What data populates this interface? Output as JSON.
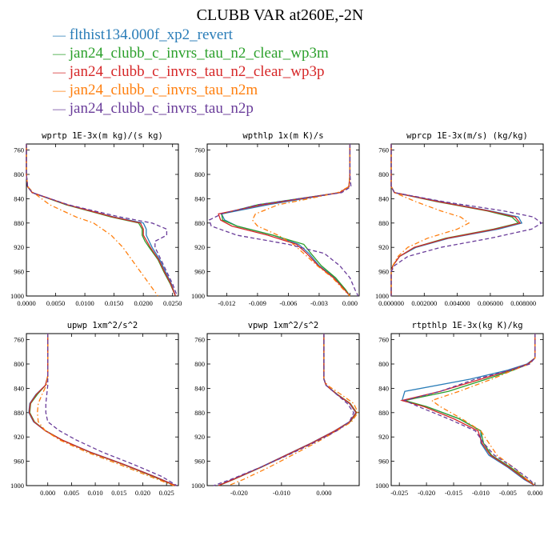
{
  "title": "CLUBB VAR at260E,-2N",
  "legend": [
    {
      "label": "flthist134.000f_xp2_revert",
      "color": "#2a7db8",
      "dash": "solid"
    },
    {
      "label": "jan24_clubb_c_invrs_tau_n2_clear_wp3m",
      "color": "#2ca02c",
      "dash": "solid"
    },
    {
      "label": "jan24_clubb_c_invrs_tau_n2_clear_wp3p",
      "color": "#d62728",
      "dash": "solid"
    },
    {
      "label": "jan24_clubb_c_invrs_tau_n2m",
      "color": "#ff7f0e",
      "dash": "dashdot"
    },
    {
      "label": "jan24_clubb_c_invrs_tau_n2p",
      "color": "#6a3d9a",
      "dash": "dash"
    }
  ],
  "chart_data": [
    {
      "type": "line",
      "title": "wprtp  1E-3x(m kg)/(s kg)",
      "xlim": [
        0,
        0.026
      ],
      "ylim": [
        1000,
        750
      ],
      "xticks": [
        0,
        0.005,
        0.01,
        0.015,
        0.02,
        0.025
      ],
      "xtick_labels": [
        "0.0000",
        "0.0050",
        "0.0100",
        "0.0150",
        "0.0200",
        "0.0250"
      ],
      "yticks": [
        760,
        800,
        840,
        880,
        920,
        960,
        1000
      ],
      "ytick_labels": [
        "760",
        "800",
        "840",
        "880",
        "920",
        "960",
        "1000"
      ],
      "y": [
        750,
        800,
        820,
        830,
        850,
        870,
        880,
        890,
        900,
        910,
        920,
        940,
        960,
        980,
        1000
      ],
      "series": [
        {
          "values": [
            0.0,
            0.0,
            0.0002,
            0.001,
            0.007,
            0.015,
            0.02,
            0.0205,
            0.0205,
            0.021,
            0.0215,
            0.0228,
            0.0238,
            0.0248,
            0.0255
          ]
        },
        {
          "values": [
            0.0,
            0.0,
            0.0002,
            0.001,
            0.0068,
            0.0145,
            0.0192,
            0.0198,
            0.0198,
            0.0203,
            0.021,
            0.0225,
            0.0235,
            0.0246,
            0.0255
          ]
        },
        {
          "values": [
            0.0,
            0.0,
            0.0002,
            0.001,
            0.007,
            0.0148,
            0.0195,
            0.02,
            0.02,
            0.0206,
            0.0212,
            0.0226,
            0.0236,
            0.0247,
            0.0255
          ]
        },
        {
          "values": [
            0.0,
            0.0,
            0.0002,
            0.0012,
            0.004,
            0.0085,
            0.0115,
            0.013,
            0.0145,
            0.0155,
            0.0165,
            0.018,
            0.0195,
            0.021,
            0.0225
          ]
        },
        {
          "values": [
            0.0,
            0.0,
            0.0002,
            0.001,
            0.0072,
            0.016,
            0.0215,
            0.024,
            0.024,
            0.022,
            0.022,
            0.023,
            0.024,
            0.025,
            0.0258
          ]
        }
      ]
    },
    {
      "type": "line",
      "title": "wpthlp  1x(m K)/s",
      "xlim": [
        -0.0139,
        0.0009
      ],
      "ylim": [
        1000,
        750
      ],
      "xticks": [
        -0.012,
        -0.009,
        -0.006,
        -0.003,
        0
      ],
      "xtick_labels": [
        "-0.012",
        "-0.009",
        "-0.006",
        "-0.003",
        "0.000"
      ],
      "yticks": [
        760,
        800,
        840,
        880,
        920,
        960,
        1000
      ],
      "ytick_labels": [
        "760",
        "800",
        "840",
        "880",
        "920",
        "960",
        "1000"
      ],
      "y": [
        750,
        800,
        820,
        830,
        840,
        850,
        865,
        875,
        885,
        900,
        915,
        930,
        950,
        970,
        990,
        1000
      ],
      "series": [
        {
          "values": [
            0,
            0,
            -0.0001,
            -0.001,
            -0.0045,
            -0.008,
            -0.0125,
            -0.0122,
            -0.011,
            -0.0075,
            -0.005,
            -0.004,
            -0.003,
            -0.0015,
            -0.0005,
            0
          ]
        },
        {
          "values": [
            0,
            0,
            -0.0001,
            -0.001,
            -0.005,
            -0.009,
            -0.0125,
            -0.0124,
            -0.011,
            -0.0075,
            -0.0045,
            -0.0038,
            -0.0028,
            -0.0014,
            -0.0004,
            0
          ]
        },
        {
          "values": [
            0,
            0,
            -0.0001,
            -0.001,
            -0.0048,
            -0.0085,
            -0.0128,
            -0.0126,
            -0.0115,
            -0.008,
            -0.0052,
            -0.0042,
            -0.0031,
            -0.0016,
            -0.0005,
            0
          ]
        },
        {
          "values": [
            0,
            0,
            -0.0001,
            -0.0012,
            -0.004,
            -0.007,
            -0.0092,
            -0.0095,
            -0.009,
            -0.007,
            -0.0055,
            -0.0045,
            -0.0032,
            -0.0017,
            -0.0006,
            0
          ]
        },
        {
          "values": [
            0,
            0,
            0.0001,
            -0.0008,
            -0.005,
            -0.009,
            -0.0125,
            -0.0137,
            -0.0135,
            -0.011,
            -0.006,
            -0.0025,
            -0.001,
            0.0,
            0.0005,
            0.0008
          ]
        }
      ]
    },
    {
      "type": "line",
      "title": "wprcp  1E-3x(m/s) (kg/kg)",
      "xlim": [
        0,
        0.0092
      ],
      "ylim": [
        1000,
        750
      ],
      "xticks": [
        0,
        0.002,
        0.004,
        0.006,
        0.008
      ],
      "xtick_labels": [
        "0.000000",
        "0.002000",
        "0.004000",
        "0.006000",
        "0.008000"
      ],
      "yticks": [
        760,
        800,
        840,
        880,
        920,
        960,
        1000
      ],
      "ytick_labels": [
        "760",
        "800",
        "840",
        "880",
        "920",
        "960",
        "1000"
      ],
      "y": [
        750,
        820,
        830,
        845,
        860,
        870,
        880,
        890,
        905,
        920,
        935,
        950,
        960,
        1000
      ],
      "series": [
        {
          "values": [
            0,
            0,
            0.0002,
            0.003,
            0.006,
            0.0077,
            0.0079,
            0.0065,
            0.0035,
            0.0015,
            0.0005,
            0.0001,
            0,
            0
          ]
        },
        {
          "values": [
            0,
            0,
            0.0002,
            0.0028,
            0.0058,
            0.0073,
            0.0077,
            0.0062,
            0.0033,
            0.0014,
            0.0005,
            0.0001,
            0,
            0
          ]
        },
        {
          "values": [
            0,
            0,
            0.0002,
            0.0029,
            0.0059,
            0.0075,
            0.0078,
            0.0063,
            0.0034,
            0.0014,
            0.0005,
            0.0001,
            0,
            0
          ]
        },
        {
          "values": [
            0,
            0,
            0.0002,
            0.0015,
            0.003,
            0.0042,
            0.0047,
            0.004,
            0.0022,
            0.001,
            0.0004,
            0.0001,
            0,
            0
          ]
        },
        {
          "values": [
            0,
            0,
            0.0002,
            0.0032,
            0.0068,
            0.0086,
            0.0091,
            0.0085,
            0.006,
            0.003,
            0.001,
            0.0002,
            0,
            0
          ]
        }
      ]
    },
    {
      "type": "line",
      "title": "upwp  1xm^2/s^2",
      "xlim": [
        -0.0045,
        0.0275
      ],
      "ylim": [
        1000,
        750
      ],
      "xticks": [
        0,
        0.005,
        0.01,
        0.015,
        0.02,
        0.025
      ],
      "xtick_labels": [
        "0.000",
        "0.005",
        "0.010",
        "0.015",
        "0.020",
        "0.025"
      ],
      "yticks": [
        760,
        800,
        840,
        880,
        920,
        960,
        1000
      ],
      "ytick_labels": [
        "760",
        "800",
        "840",
        "880",
        "920",
        "960",
        "1000"
      ],
      "y": [
        750,
        820,
        835,
        850,
        865,
        880,
        895,
        910,
        925,
        945,
        965,
        985,
        1000
      ],
      "series": [
        {
          "values": [
            0,
            0,
            -0.0005,
            -0.0025,
            -0.0038,
            -0.004,
            -0.003,
            -0.0005,
            0.003,
            0.009,
            0.016,
            0.0225,
            0.027
          ]
        },
        {
          "values": [
            0,
            0,
            -0.0005,
            -0.0022,
            -0.0036,
            -0.0038,
            -0.0028,
            -0.0004,
            0.003,
            0.0088,
            0.0158,
            0.0222,
            0.0268
          ]
        },
        {
          "values": [
            0,
            0,
            -0.0005,
            -0.0024,
            -0.0037,
            -0.0039,
            -0.0029,
            -0.0005,
            0.003,
            0.0089,
            0.0159,
            0.0224,
            0.0269
          ]
        },
        {
          "values": [
            0,
            0,
            -0.0003,
            -0.0012,
            -0.002,
            -0.0022,
            -0.002,
            -0.0005,
            0.0025,
            0.0082,
            0.015,
            0.0215,
            0.0265
          ]
        },
        {
          "values": [
            0,
            0,
            0,
            -0.0002,
            -0.0004,
            -0.0004,
            0,
            0.0025,
            0.006,
            0.0115,
            0.018,
            0.024,
            0.0272
          ]
        }
      ]
    },
    {
      "type": "line",
      "title": "vpwp  1xm^2/s^2",
      "xlim": [
        -0.0275,
        0.0083
      ],
      "ylim": [
        1000,
        750
      ],
      "xticks": [
        -0.02,
        -0.01,
        0
      ],
      "xtick_labels": [
        "-0.020",
        "-0.010",
        "0.000"
      ],
      "yticks": [
        760,
        800,
        840,
        880,
        920,
        960,
        1000
      ],
      "ytick_labels": [
        "760",
        "800",
        "840",
        "880",
        "920",
        "960",
        "1000"
      ],
      "y": [
        750,
        825,
        835,
        850,
        865,
        880,
        895,
        910,
        930,
        950,
        970,
        990,
        1000
      ],
      "series": [
        {
          "values": [
            0,
            0,
            0.0005,
            0.003,
            0.006,
            0.0075,
            0.006,
            0.0025,
            -0.003,
            -0.009,
            -0.015,
            -0.0215,
            -0.025
          ]
        },
        {
          "values": [
            0,
            0,
            0.0005,
            0.0032,
            0.0062,
            0.0077,
            0.0062,
            0.0027,
            -0.0028,
            -0.0088,
            -0.0148,
            -0.0213,
            -0.0248
          ]
        },
        {
          "values": [
            0,
            0,
            0.0005,
            0.0031,
            0.0061,
            0.0076,
            0.0061,
            0.0026,
            -0.0029,
            -0.0089,
            -0.0149,
            -0.0214,
            -0.0249
          ]
        },
        {
          "values": [
            0,
            0,
            0.0008,
            0.004,
            0.007,
            0.008,
            0.0065,
            0.003,
            -0.002,
            -0.0075,
            -0.013,
            -0.019,
            -0.0225
          ]
        },
        {
          "values": [
            0,
            0,
            0.0005,
            0.003,
            0.0055,
            0.007,
            0.006,
            0.003,
            -0.0025,
            -0.0085,
            -0.015,
            -0.022,
            -0.026
          ]
        }
      ]
    },
    {
      "type": "line",
      "title": "rtpthlp  1E-3x(kg K)/kg",
      "xlim": [
        -0.0265,
        0.0015
      ],
      "ylim": [
        1000,
        750
      ],
      "xticks": [
        -0.025,
        -0.02,
        -0.015,
        -0.01,
        -0.005,
        0
      ],
      "xtick_labels": [
        "-0.025",
        "-0.020",
        "-0.015",
        "-0.010",
        "-0.005",
        "0.000"
      ],
      "yticks": [
        760,
        800,
        840,
        880,
        920,
        960,
        1000
      ],
      "ytick_labels": [
        "760",
        "800",
        "840",
        "880",
        "920",
        "960",
        "1000"
      ],
      "y": [
        750,
        790,
        800,
        810,
        825,
        845,
        860,
        870,
        890,
        910,
        930,
        950,
        970,
        990,
        1000
      ],
      "series": [
        {
          "values": [
            0,
            0,
            -0.0015,
            -0.005,
            -0.012,
            -0.024,
            -0.0245,
            -0.02,
            -0.014,
            -0.01,
            -0.01,
            -0.0085,
            -0.005,
            -0.002,
            0
          ]
        },
        {
          "values": [
            0,
            0,
            -0.0012,
            -0.004,
            -0.009,
            -0.016,
            -0.024,
            -0.02,
            -0.014,
            -0.01,
            -0.0095,
            -0.008,
            -0.0045,
            -0.0015,
            0
          ]
        },
        {
          "values": [
            0,
            0,
            -0.0013,
            -0.0045,
            -0.01,
            -0.0175,
            -0.0245,
            -0.0205,
            -0.015,
            -0.0105,
            -0.0098,
            -0.0082,
            -0.0048,
            -0.0018,
            0
          ]
        },
        {
          "values": [
            0,
            0,
            -0.001,
            -0.004,
            -0.008,
            -0.014,
            -0.019,
            -0.0175,
            -0.0135,
            -0.01,
            -0.0085,
            -0.007,
            -0.004,
            -0.0015,
            0
          ]
        },
        {
          "values": [
            0,
            0,
            -0.001,
            -0.0045,
            -0.011,
            -0.0175,
            -0.024,
            -0.0215,
            -0.016,
            -0.011,
            -0.0095,
            -0.0075,
            -0.004,
            -0.001,
            0
          ]
        }
      ]
    }
  ]
}
